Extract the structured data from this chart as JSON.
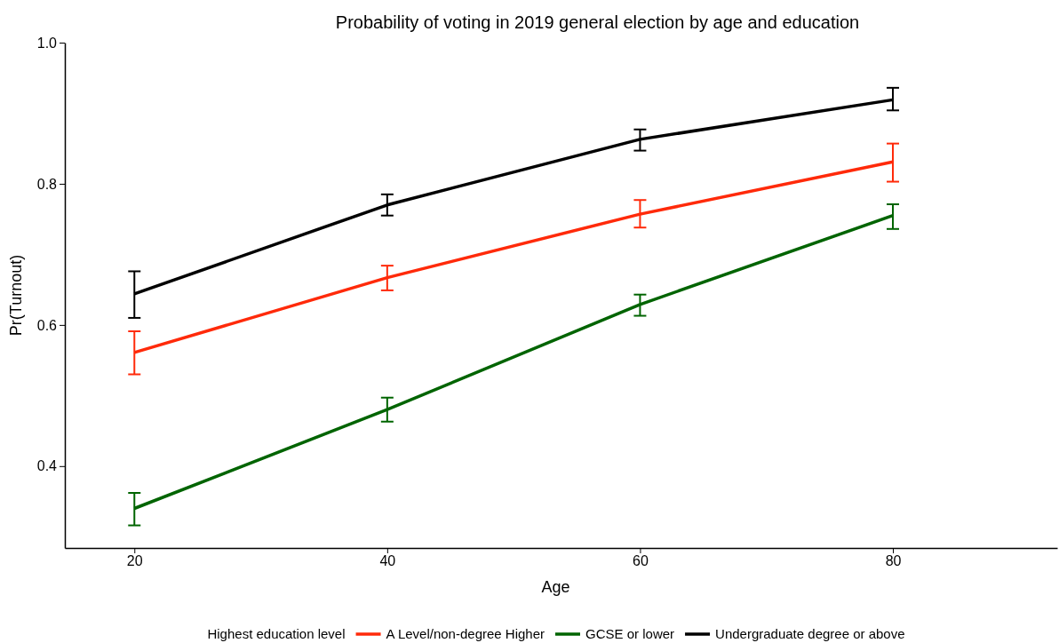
{
  "chart_data": {
    "type": "line",
    "title": "Probability of voting in 2019 general election by age and education",
    "xlabel": "Age",
    "ylabel": "Pr(Turnout)",
    "legend_title": "Highest education level",
    "x": [
      20,
      40,
      60,
      80
    ],
    "series": [
      {
        "name": "A Level/non-degree Higher",
        "color": "#ff2a0a",
        "values": [
          0.561,
          0.667,
          0.757,
          0.831
        ],
        "errors": [
          [
            0.53,
            0.591
          ],
          [
            0.649,
            0.684
          ],
          [
            0.738,
            0.777
          ],
          [
            0.803,
            0.857
          ]
        ]
      },
      {
        "name": "GCSE or lower",
        "color": "#006400",
        "values": [
          0.34,
          0.48,
          0.629,
          0.755
        ],
        "errors": [
          [
            0.316,
            0.362
          ],
          [
            0.463,
            0.497
          ],
          [
            0.613,
            0.643
          ],
          [
            0.736,
            0.771
          ]
        ]
      },
      {
        "name": "Undergraduate degree or above",
        "color": "#000000",
        "values": [
          0.644,
          0.77,
          0.863,
          0.919
        ],
        "errors": [
          [
            0.61,
            0.676
          ],
          [
            0.755,
            0.785
          ],
          [
            0.847,
            0.877
          ],
          [
            0.904,
            0.936
          ]
        ]
      }
    ],
    "xlim": [
      14.5,
      93
    ],
    "xticks": [
      20,
      40,
      60,
      80
    ],
    "ylim": [
      0.284,
      1.0
    ],
    "yticks": [
      0.4,
      0.6,
      0.8,
      {
        "value": 1.0,
        "label": "1.0"
      }
    ],
    "grid": false,
    "legend": "bottom",
    "marker": "none",
    "line_style": "solid"
  }
}
